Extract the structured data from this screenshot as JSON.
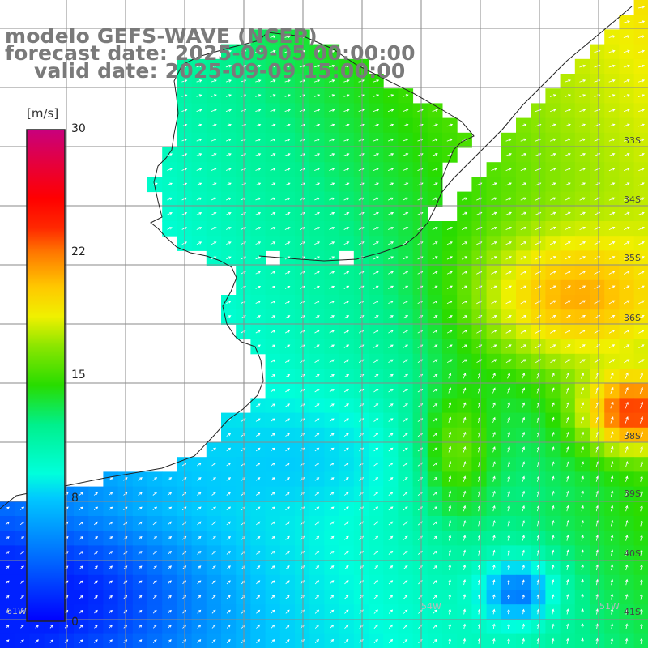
{
  "title": {
    "line1": "modelo GEFS-WAVE (NCEP)",
    "line2": "forecast date: 2025-09-05 00:00:00",
    "line3": "valid date: 2025-09-09 15:00:00"
  },
  "colorbar": {
    "unit": "[m/s]",
    "ticks": [
      "30",
      "22",
      "15",
      "8",
      "0"
    ],
    "min": 0,
    "max": 30
  },
  "lat_labels": [
    "33S",
    "34S",
    "35S",
    "36S",
    "38S",
    "39S",
    "40S",
    "41S"
  ],
  "lon_labels": [
    "61W",
    "54W",
    "51W"
  ],
  "colors": {
    "land": "#ffffff",
    "grid": "#9a9a9a",
    "coast": "#222222",
    "arrow": "#ffffff"
  }
}
